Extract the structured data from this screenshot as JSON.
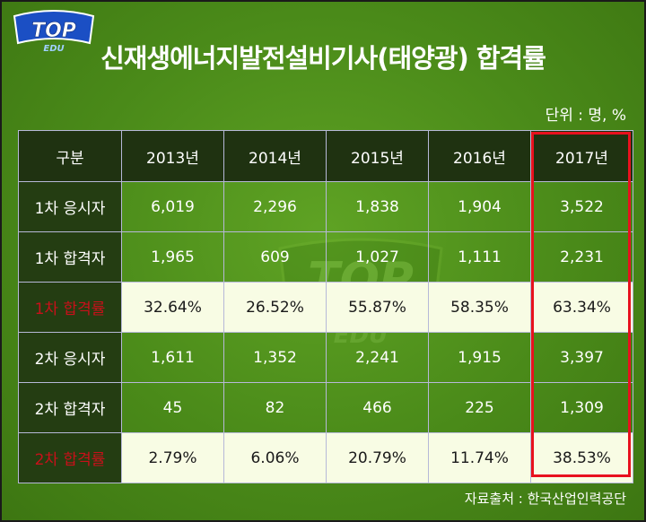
{
  "logo": {
    "main": "TOP",
    "sub": "EDU"
  },
  "title": "신재생에너지발전설비기사(태양광) 합격률",
  "unit": "단위 : 명, %",
  "source": "자료출처 : 한국산업인력공단",
  "colors": {
    "background": "#4a8a19",
    "header": "#1f3211",
    "highlight_row": "#f8fce4",
    "highlight_text": "#c8101a",
    "highlight_box": "#e8111e"
  },
  "chart_data": {
    "type": "table",
    "highlighted_column": "2017년",
    "columns": [
      "구분",
      "2013년",
      "2014년",
      "2015년",
      "2016년",
      "2017년"
    ],
    "rows": [
      {
        "label": "1차 응시자",
        "values": [
          "6,019",
          "2,296",
          "1,838",
          "1,904",
          "3,522"
        ],
        "highlight": false
      },
      {
        "label": "1차 합격자",
        "values": [
          "1,965",
          "609",
          "1,027",
          "1,111",
          "2,231"
        ],
        "highlight": false
      },
      {
        "label": "1차 합격률",
        "values": [
          "32.64%",
          "26.52%",
          "55.87%",
          "58.35%",
          "63.34%"
        ],
        "highlight": true
      },
      {
        "label": "2차 응시자",
        "values": [
          "1,611",
          "1,352",
          "2,241",
          "1,915",
          "3,397"
        ],
        "highlight": false
      },
      {
        "label": "2차 합격자",
        "values": [
          "45",
          "82",
          "466",
          "225",
          "1,309"
        ],
        "highlight": false
      },
      {
        "label": "2차 합격률",
        "values": [
          "2.79%",
          "6.06%",
          "20.79%",
          "11.74%",
          "38.53%"
        ],
        "highlight": true
      }
    ]
  }
}
